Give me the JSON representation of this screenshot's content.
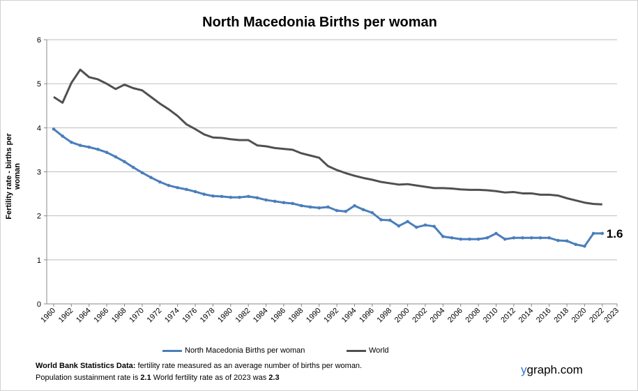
{
  "chart_data": {
    "type": "line",
    "title": "North Macedonia Births per woman",
    "ylabel": "Fertility rate  - births per woman",
    "xlabel": "",
    "ylim": [
      0,
      6
    ],
    "yticks": [
      0,
      1,
      2,
      3,
      4,
      5,
      6
    ],
    "xticks": [
      "1960",
      "1962",
      "1964",
      "1966",
      "1968",
      "1970",
      "1972",
      "1974",
      "1976",
      "1978",
      "1980",
      "1982",
      "1984",
      "1986",
      "1988",
      "1990",
      "1992",
      "1994",
      "1996",
      "1998",
      "2000",
      "2002",
      "2004",
      "2006",
      "2008",
      "2010",
      "2012",
      "2014",
      "2016",
      "2018",
      "2020",
      "2022",
      "2023"
    ],
    "grid": true,
    "legend": "bottom",
    "x": [
      1960,
      1961,
      1962,
      1963,
      1964,
      1965,
      1966,
      1967,
      1968,
      1969,
      1970,
      1971,
      1972,
      1973,
      1974,
      1975,
      1976,
      1977,
      1978,
      1979,
      1980,
      1981,
      1982,
      1983,
      1984,
      1985,
      1986,
      1987,
      1988,
      1989,
      1990,
      1991,
      1992,
      1993,
      1994,
      1995,
      1996,
      1997,
      1998,
      1999,
      2000,
      2001,
      2002,
      2003,
      2004,
      2005,
      2006,
      2007,
      2008,
      2009,
      2010,
      2011,
      2012,
      2013,
      2014,
      2015,
      2016,
      2017,
      2018,
      2019,
      2020,
      2021,
      2022
    ],
    "series": [
      {
        "name": "North Macedonia Births per woman",
        "color": "#4a7ebb",
        "markers": true,
        "values": [
          3.97,
          3.81,
          3.67,
          3.6,
          3.56,
          3.51,
          3.44,
          3.34,
          3.23,
          3.1,
          2.98,
          2.87,
          2.77,
          2.69,
          2.64,
          2.6,
          2.55,
          2.49,
          2.45,
          2.44,
          2.42,
          2.42,
          2.44,
          2.41,
          2.36,
          2.33,
          2.3,
          2.28,
          2.23,
          2.2,
          2.18,
          2.2,
          2.12,
          2.1,
          2.23,
          2.14,
          2.07,
          1.91,
          1.9,
          1.77,
          1.87,
          1.74,
          1.79,
          1.76,
          1.53,
          1.5,
          1.47,
          1.47,
          1.47,
          1.5,
          1.6,
          1.47,
          1.5,
          1.5,
          1.5,
          1.5,
          1.5,
          1.44,
          1.43,
          1.35,
          1.31,
          1.6,
          1.6
        ]
      },
      {
        "name": "World",
        "color": "#505050",
        "markers": false,
        "values": [
          4.7,
          4.57,
          5.02,
          5.32,
          5.15,
          5.1,
          5.0,
          4.88,
          4.98,
          4.9,
          4.85,
          4.7,
          4.55,
          4.42,
          4.27,
          4.08,
          3.97,
          3.85,
          3.78,
          3.77,
          3.74,
          3.72,
          3.72,
          3.6,
          3.58,
          3.54,
          3.52,
          3.5,
          3.42,
          3.37,
          3.32,
          3.13,
          3.04,
          2.97,
          2.91,
          2.86,
          2.82,
          2.77,
          2.74,
          2.71,
          2.72,
          2.69,
          2.66,
          2.63,
          2.63,
          2.62,
          2.6,
          2.59,
          2.59,
          2.58,
          2.56,
          2.53,
          2.54,
          2.51,
          2.51,
          2.48,
          2.48,
          2.46,
          2.4,
          2.35,
          2.3,
          2.27,
          2.26
        ]
      }
    ],
    "annotation": "1.6"
  },
  "footer": {
    "line1_bold": "World Bank Statistics Data:",
    "line1": " fertility rate measured as an average number  of births per woman.",
    "line2a": "Population sustainment rate is ",
    "line2b": "2.1",
    "line2c": "   World fertility rate as of 2023 was ",
    "line2d": "2.3"
  },
  "brand": {
    "y": "y",
    "rest": "graph.com"
  }
}
